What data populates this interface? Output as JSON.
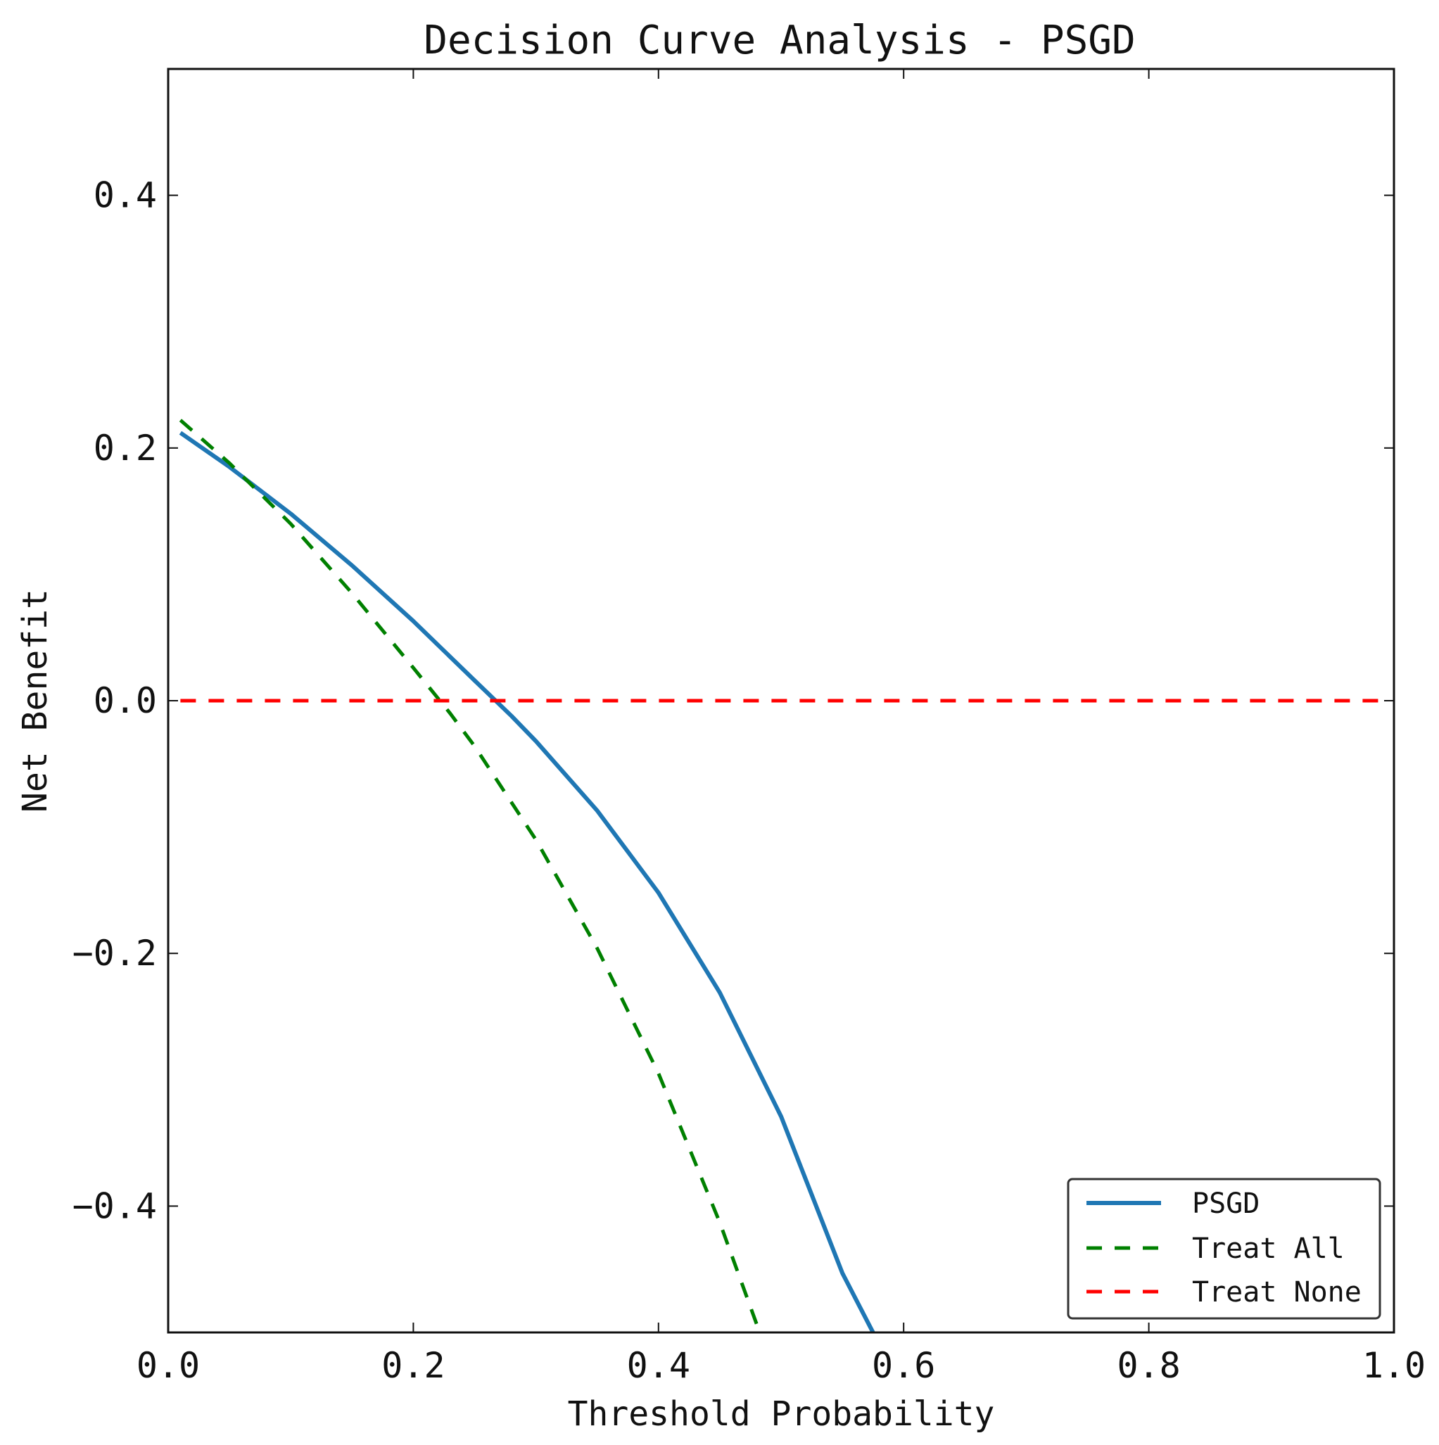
{
  "chart_data": {
    "type": "line",
    "title": "Decision Curve Analysis - PSGD",
    "xlabel": "Threshold Probability",
    "ylabel": "Net Benefit",
    "xlim": [
      0.0,
      1.0
    ],
    "ylim": [
      -0.5,
      0.5
    ],
    "xticks": [
      0.0,
      0.2,
      0.4,
      0.6,
      0.8,
      1.0
    ],
    "xtick_labels": [
      "0.0",
      "0.2",
      "0.4",
      "0.6",
      "0.8",
      "1.0"
    ],
    "yticks": [
      -0.4,
      -0.2,
      0.0,
      0.2,
      0.4
    ],
    "ytick_labels": [
      "−0.4",
      "−0.2",
      "0.0",
      "0.2",
      "0.4"
    ],
    "grid": false,
    "legend_position": "lower-right",
    "series": [
      {
        "name": "PSGD",
        "color": "#1f77b4",
        "style": "solid",
        "x": [
          0.01,
          0.05,
          0.1,
          0.15,
          0.2,
          0.25,
          0.28,
          0.3,
          0.35,
          0.4,
          0.45,
          0.5,
          0.55,
          0.575
        ],
        "y": [
          0.212,
          0.185,
          0.148,
          0.107,
          0.063,
          0.016,
          -0.012,
          -0.032,
          -0.087,
          -0.152,
          -0.231,
          -0.329,
          -0.453,
          -0.5
        ]
      },
      {
        "name": "Treat All",
        "color": "#008000",
        "style": "dashed",
        "x": [
          0.01,
          0.05,
          0.1,
          0.15,
          0.2,
          0.23,
          0.25,
          0.3,
          0.35,
          0.4,
          0.45,
          0.49
        ],
        "y": [
          0.222,
          0.188,
          0.14,
          0.085,
          0.026,
          -0.01,
          -0.036,
          -0.11,
          -0.196,
          -0.295,
          -0.413,
          -0.52
        ]
      },
      {
        "name": "Treat None",
        "color": "#ff0000",
        "style": "dashed",
        "x": [
          0.01,
          0.99
        ],
        "y": [
          0.0,
          0.0
        ]
      }
    ]
  }
}
